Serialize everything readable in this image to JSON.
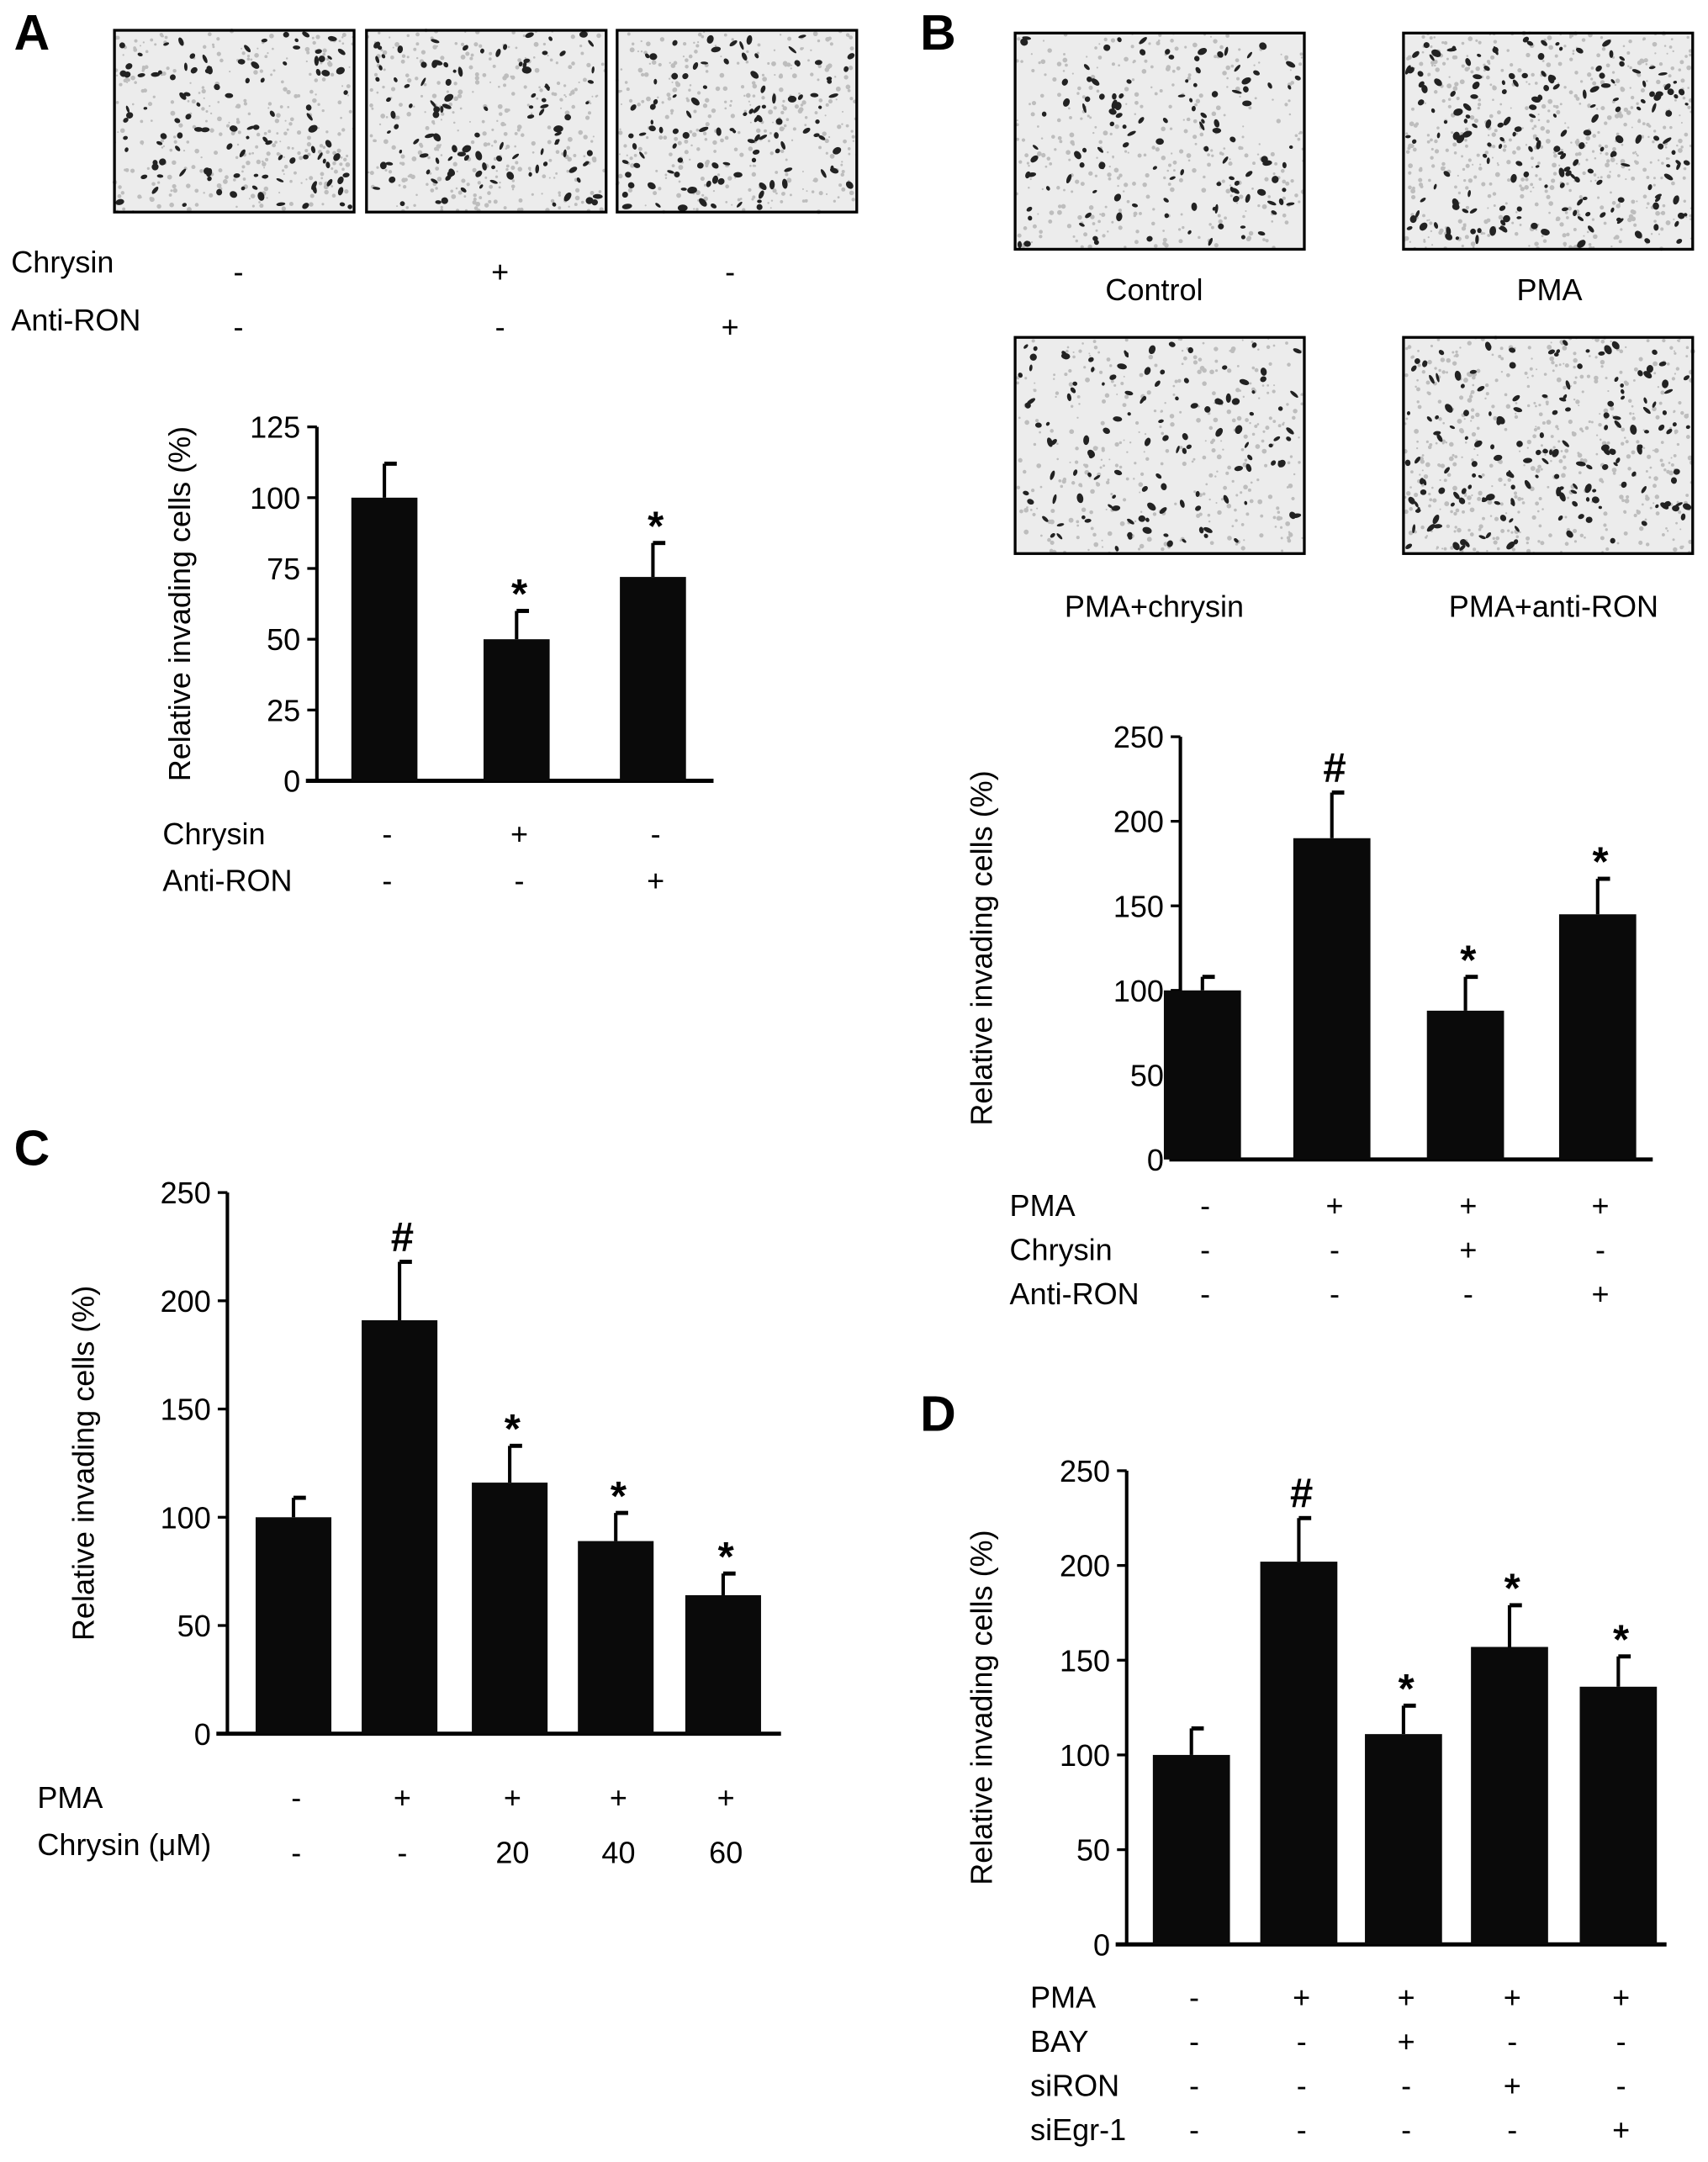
{
  "panels": {
    "A": {
      "letter": "A"
    },
    "B": {
      "letter": "B"
    },
    "C": {
      "letter": "C"
    },
    "D": {
      "letter": "D"
    }
  },
  "micrographs": {
    "A": {
      "rows": [
        {
          "label": "Chrysin",
          "signs": [
            "-",
            "+",
            "-"
          ]
        },
        {
          "label": "Anti-RON",
          "signs": [
            "-",
            "-",
            "+"
          ]
        }
      ]
    },
    "B": {
      "captions": [
        "Control",
        "PMA",
        "PMA+chrysin",
        "PMA+anti-RON"
      ]
    }
  },
  "chart_data": [
    {
      "id": "A",
      "type": "bar",
      "ylabel": "Relative invading cells (%)",
      "ylim": [
        0,
        125
      ],
      "yticks": [
        0,
        25,
        50,
        75,
        100,
        125
      ],
      "values": [
        100,
        50,
        72
      ],
      "error_upper": [
        112,
        60,
        84
      ],
      "annotations": [
        "",
        "*",
        "*"
      ],
      "condition_rows": [
        {
          "label": "Chrysin",
          "signs": [
            "-",
            "+",
            "-"
          ]
        },
        {
          "label": "Anti-RON",
          "signs": [
            "-",
            "-",
            "+"
          ]
        }
      ]
    },
    {
      "id": "B",
      "type": "bar",
      "ylabel": "Relative invading cells (%)",
      "ylim": [
        0,
        250
      ],
      "yticks": [
        0,
        50,
        100,
        150,
        200,
        250
      ],
      "values": [
        100,
        190,
        88,
        145
      ],
      "error_upper": [
        108,
        217,
        108,
        166
      ],
      "annotations": [
        "",
        "#",
        "*",
        "*"
      ],
      "condition_rows": [
        {
          "label": "PMA",
          "signs": [
            "-",
            "+",
            "+",
            "+"
          ]
        },
        {
          "label": "Chrysin",
          "signs": [
            "-",
            "-",
            "+",
            "-"
          ]
        },
        {
          "label": "Anti-RON",
          "signs": [
            "-",
            "-",
            "-",
            "+"
          ]
        }
      ]
    },
    {
      "id": "C",
      "type": "bar",
      "ylabel": "Relative invading cells (%)",
      "ylim": [
        0,
        250
      ],
      "yticks": [
        0,
        50,
        100,
        150,
        200,
        250
      ],
      "values": [
        100,
        191,
        116,
        89,
        64
      ],
      "error_upper": [
        109,
        218,
        133,
        102,
        74
      ],
      "annotations": [
        "",
        "#",
        "*",
        "*",
        "*"
      ],
      "condition_rows": [
        {
          "label": "PMA",
          "signs": [
            "-",
            "+",
            "+",
            "+",
            "+"
          ]
        },
        {
          "label": "Chrysin (μM)",
          "signs": [
            "-",
            "-",
            "20",
            "40",
            "60"
          ]
        }
      ]
    },
    {
      "id": "D",
      "type": "bar",
      "ylabel": "Relative invading cells (%)",
      "ylim": [
        0,
        250
      ],
      "yticks": [
        0,
        50,
        100,
        150,
        200,
        250
      ],
      "values": [
        100,
        202,
        111,
        157,
        136
      ],
      "error_upper": [
        114,
        225,
        126,
        179,
        152
      ],
      "annotations": [
        "",
        "#",
        "*",
        "*",
        "*"
      ],
      "condition_rows": [
        {
          "label": "PMA",
          "signs": [
            "-",
            "+",
            "+",
            "+",
            "+"
          ]
        },
        {
          "label": "BAY",
          "signs": [
            "-",
            "-",
            "+",
            "-",
            "-"
          ]
        },
        {
          "label": "siRON",
          "signs": [
            "-",
            "-",
            "-",
            "+",
            "-"
          ]
        },
        {
          "label": "siEgr-1",
          "signs": [
            "-",
            "-",
            "-",
            "-",
            "+"
          ]
        }
      ]
    }
  ]
}
